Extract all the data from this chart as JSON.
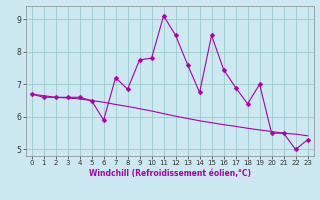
{
  "title": "",
  "xlabel": "Windchill (Refroidissement éolien,°C)",
  "background_color": "#cce8f0",
  "line_color": "#aa00aa",
  "grid_color": "#99cccc",
  "xlim": [
    -0.5,
    23.5
  ],
  "ylim": [
    4.8,
    9.4
  ],
  "xticks": [
    0,
    1,
    2,
    3,
    4,
    5,
    6,
    7,
    8,
    9,
    10,
    11,
    12,
    13,
    14,
    15,
    16,
    17,
    18,
    19,
    20,
    21,
    22,
    23
  ],
  "yticks": [
    5,
    6,
    7,
    8,
    9
  ],
  "hours": [
    0,
    1,
    2,
    3,
    4,
    5,
    6,
    7,
    8,
    9,
    10,
    11,
    12,
    13,
    14,
    15,
    16,
    17,
    18,
    19,
    20,
    21,
    22,
    23
  ],
  "values": [
    6.7,
    6.6,
    6.6,
    6.6,
    6.6,
    6.5,
    5.9,
    7.2,
    6.85,
    7.75,
    7.8,
    9.1,
    8.5,
    7.6,
    6.75,
    8.5,
    7.45,
    6.9,
    6.4,
    7.0,
    5.5,
    5.5,
    5.0,
    5.3
  ],
  "values2": [
    6.7,
    6.65,
    6.6,
    6.58,
    6.55,
    6.5,
    6.45,
    6.38,
    6.32,
    6.25,
    6.18,
    6.1,
    6.02,
    5.95,
    5.88,
    5.82,
    5.76,
    5.71,
    5.65,
    5.6,
    5.55,
    5.5,
    5.47,
    5.42
  ],
  "markersize": 2.5,
  "linewidth": 0.8,
  "tick_fontsize": 5.0,
  "xlabel_fontsize": 5.5
}
